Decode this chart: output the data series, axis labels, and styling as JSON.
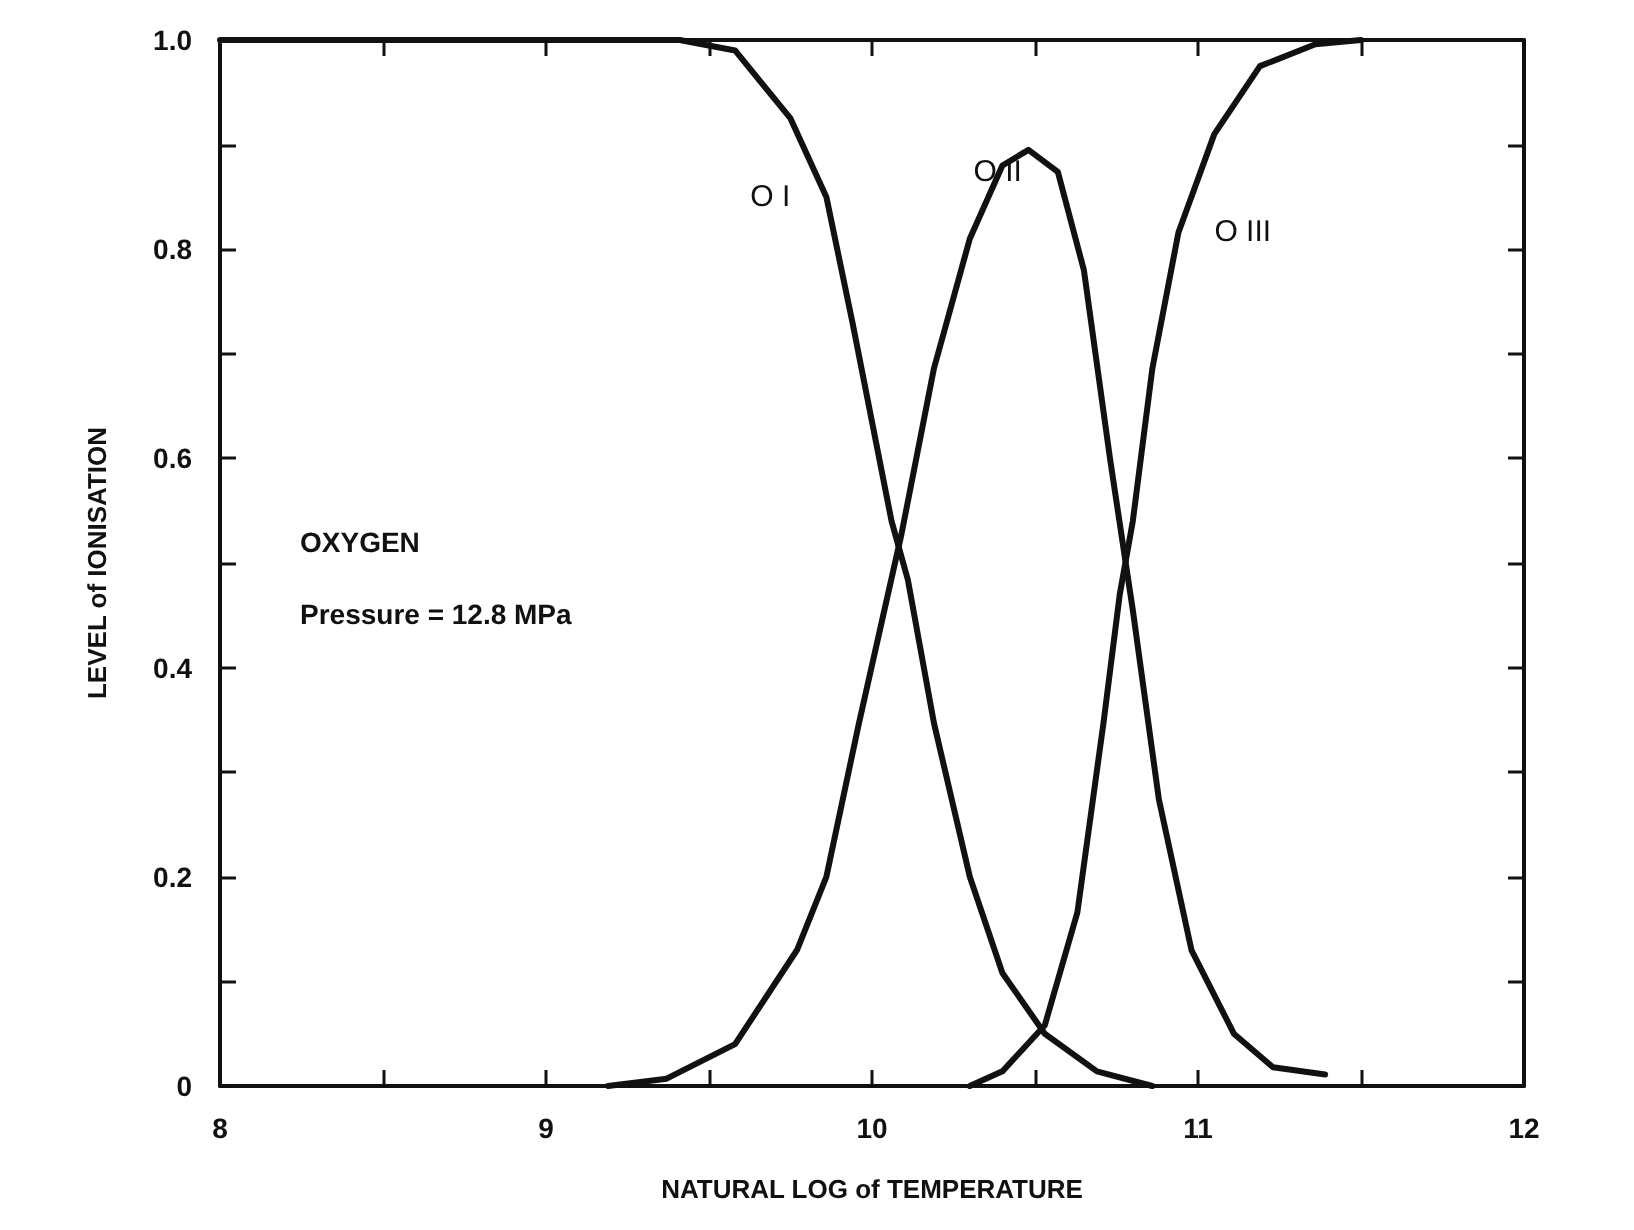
{
  "chart_data": {
    "type": "line",
    "xlabel": "NATURAL LOG of TEMPERATURE",
    "ylabel": "LEVEL of IONISATION",
    "xlim": [
      8,
      12
    ],
    "xticks": [
      8,
      {
        "value": 8.5,
        "label": null
      },
      9,
      {
        "value": 9.5,
        "label": null
      },
      10,
      {
        "value": 10.5,
        "label": null
      },
      11,
      {
        "value": 11.5,
        "label": null
      },
      12
    ],
    "ylim": [
      0,
      1
    ],
    "yticks": [
      0,
      {
        "value": 0.1,
        "label": null
      },
      0.2,
      {
        "value": 0.3,
        "label": null
      },
      0.4,
      {
        "value": 0.5,
        "label": null
      },
      0.6,
      {
        "value": 0.7,
        "label": null
      },
      0.8,
      {
        "value": 0.9,
        "label": null
      },
      {
        "value": 1,
        "label": "1.0"
      }
    ],
    "grid": false,
    "legend": false,
    "marker": "none",
    "line_style": "solid",
    "annotations": [
      "OXYGEN",
      "Pressure = 12.8 MPa"
    ],
    "series": [
      {
        "name": "O I",
        "color": "#111111",
        "x": [
          8,
          9.0,
          9.41,
          9.58,
          9.75,
          9.86,
          9.94,
          10.06,
          10.11,
          10.19,
          10.3,
          10.4,
          10.53,
          10.69,
          10.86
        ],
        "values": [
          1,
          1,
          1,
          0.99,
          0.925,
          0.85,
          0.73,
          0.54,
          0.484,
          0.347,
          0.2,
          0.108,
          0.05,
          0.014,
          0
        ]
      },
      {
        "name": "O II",
        "color": "#111111",
        "x": [
          9.19,
          9.37,
          9.58,
          9.77,
          9.86,
          9.96,
          10.09,
          10.19,
          10.3,
          10.4,
          10.48,
          10.57,
          10.65,
          10.73,
          10.8,
          10.88,
          10.98,
          11.11,
          11.23,
          11.39
        ],
        "values": [
          0,
          0.007,
          0.04,
          0.13,
          0.2,
          0.347,
          0.527,
          0.686,
          0.81,
          0.88,
          0.895,
          0.874,
          0.78,
          0.6,
          0.455,
          0.274,
          0.13,
          0.05,
          0.018,
          0.011
        ]
      },
      {
        "name": "O III",
        "color": "#111111",
        "x": [
          10.3,
          10.4,
          10.53,
          10.63,
          10.71,
          10.76,
          10.8,
          10.86,
          10.94,
          11.05,
          11.19,
          11.36,
          11.5
        ],
        "values": [
          0,
          0.014,
          0.058,
          0.166,
          0.347,
          0.47,
          0.54,
          0.686,
          0.816,
          0.91,
          0.975,
          0.996,
          1
        ]
      }
    ]
  }
}
